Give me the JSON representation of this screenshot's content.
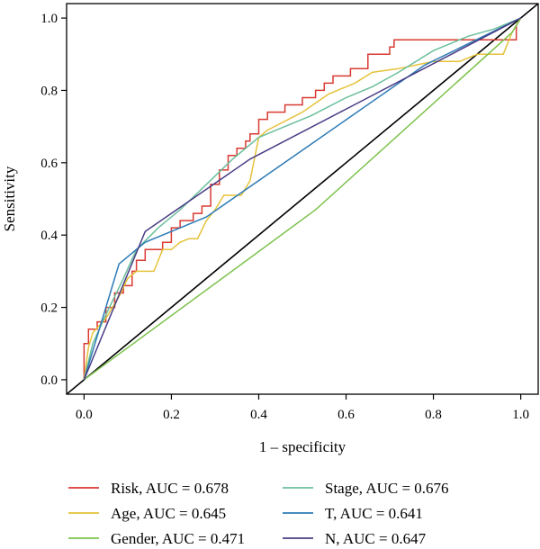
{
  "chart_data": {
    "type": "line",
    "xlabel": "1 – specificity",
    "ylabel": "Sensitivity",
    "xlim": [
      -0.04,
      1.04
    ],
    "ylim": [
      -0.04,
      1.04
    ],
    "xticks": [
      "0.0",
      "0.2",
      "0.4",
      "0.6",
      "0.8",
      "1.0"
    ],
    "yticks": [
      "0.0",
      "0.2",
      "0.4",
      "0.6",
      "0.8",
      "1.0"
    ],
    "grid": false,
    "legend_position": "bottom",
    "reference_line": {
      "x": [
        -0.04,
        1.04
      ],
      "y": [
        -0.04,
        1.04
      ],
      "color": "#000000"
    },
    "series": [
      {
        "name": "Risk, AUC = 0.678",
        "color": "#d93a32",
        "step": true,
        "x": [
          0,
          0,
          0.01,
          0.01,
          0.03,
          0.03,
          0.05,
          0.05,
          0.07,
          0.07,
          0.09,
          0.09,
          0.11,
          0.11,
          0.12,
          0.12,
          0.14,
          0.14,
          0.18,
          0.18,
          0.2,
          0.2,
          0.22,
          0.22,
          0.25,
          0.25,
          0.27,
          0.27,
          0.29,
          0.29,
          0.31,
          0.31,
          0.33,
          0.33,
          0.35,
          0.35,
          0.37,
          0.37,
          0.38,
          0.38,
          0.4,
          0.4,
          0.42,
          0.42,
          0.46,
          0.46,
          0.5,
          0.5,
          0.53,
          0.53,
          0.55,
          0.55,
          0.57,
          0.57,
          0.61,
          0.61,
          0.65,
          0.65,
          0.7,
          0.7,
          0.71,
          0.71,
          0.99,
          0.99,
          1.0
        ],
        "y": [
          0,
          0.1,
          0.1,
          0.14,
          0.14,
          0.16,
          0.16,
          0.2,
          0.2,
          0.24,
          0.24,
          0.26,
          0.26,
          0.3,
          0.3,
          0.33,
          0.33,
          0.36,
          0.36,
          0.38,
          0.38,
          0.42,
          0.42,
          0.44,
          0.44,
          0.46,
          0.46,
          0.48,
          0.48,
          0.54,
          0.54,
          0.58,
          0.58,
          0.62,
          0.62,
          0.64,
          0.64,
          0.66,
          0.66,
          0.68,
          0.68,
          0.72,
          0.72,
          0.74,
          0.74,
          0.76,
          0.76,
          0.78,
          0.78,
          0.8,
          0.8,
          0.82,
          0.82,
          0.84,
          0.84,
          0.86,
          0.86,
          0.9,
          0.9,
          0.92,
          0.92,
          0.94,
          0.94,
          0.98,
          1.0
        ]
      },
      {
        "name": "Age, AUC = 0.645",
        "color": "#e5c23a",
        "step": false,
        "x": [
          0,
          0.01,
          0.02,
          0.05,
          0.08,
          0.1,
          0.12,
          0.14,
          0.16,
          0.18,
          0.2,
          0.22,
          0.24,
          0.26,
          0.28,
          0.3,
          0.32,
          0.34,
          0.36,
          0.38,
          0.4,
          0.42,
          0.5,
          0.56,
          0.62,
          0.66,
          0.72,
          0.8,
          0.86,
          0.9,
          0.92,
          0.96,
          0.98,
          1.0
        ],
        "y": [
          0,
          0.09,
          0.13,
          0.17,
          0.23,
          0.28,
          0.3,
          0.3,
          0.3,
          0.36,
          0.36,
          0.38,
          0.39,
          0.39,
          0.44,
          0.47,
          0.51,
          0.51,
          0.51,
          0.55,
          0.67,
          0.69,
          0.74,
          0.79,
          0.82,
          0.85,
          0.86,
          0.88,
          0.88,
          0.9,
          0.9,
          0.9,
          0.96,
          1.0
        ]
      },
      {
        "name": "Gender, AUC = 0.471",
        "color": "#7ec24e",
        "step": false,
        "x": [
          0,
          0.53,
          0.98,
          1.0
        ],
        "y": [
          0,
          0.47,
          0.96,
          1.0
        ]
      },
      {
        "name": "Stage, AUC = 0.676",
        "color": "#6bbf9c",
        "step": false,
        "x": [
          0,
          0.02,
          0.05,
          0.09,
          0.12,
          0.17,
          0.22,
          0.28,
          0.34,
          0.4,
          0.46,
          0.52,
          0.6,
          0.66,
          0.72,
          0.8,
          0.88,
          0.94,
          1.0
        ],
        "y": [
          0,
          0.1,
          0.18,
          0.28,
          0.36,
          0.42,
          0.47,
          0.54,
          0.61,
          0.67,
          0.7,
          0.73,
          0.78,
          0.81,
          0.85,
          0.91,
          0.95,
          0.97,
          1.0
        ]
      },
      {
        "name": "T, AUC = 0.641",
        "color": "#2e7bb6",
        "step": false,
        "x": [
          0,
          0.08,
          0.14,
          0.28,
          0.53,
          0.78,
          1.0
        ],
        "y": [
          0,
          0.32,
          0.38,
          0.45,
          0.66,
          0.87,
          1.0
        ]
      },
      {
        "name": "N, AUC = 0.647",
        "color": "#4a3d86",
        "step": false,
        "x": [
          0,
          0.14,
          0.38,
          1.0
        ],
        "y": [
          0,
          0.41,
          0.61,
          1.0
        ]
      }
    ]
  }
}
